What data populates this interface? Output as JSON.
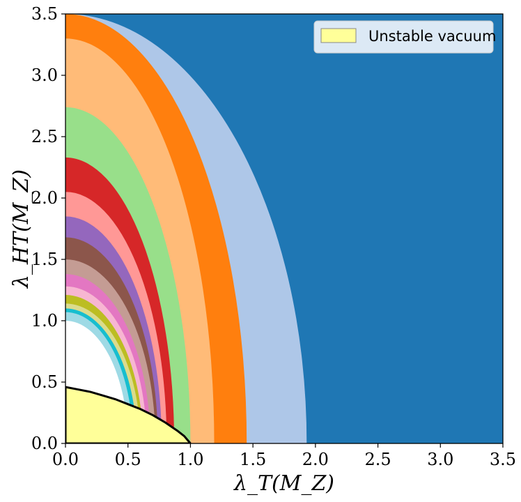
{
  "chart_data": {
    "type": "area",
    "xlabel": "λ_T(M_Z)",
    "ylabel": "λ_HT(M_Z)",
    "xlim": [
      0.0,
      3.5
    ],
    "ylim": [
      0.0,
      3.5
    ],
    "x_ticks": [
      "0.0",
      "0.5",
      "1.0",
      "1.5",
      "2.0",
      "2.5",
      "3.0",
      "3.5"
    ],
    "y_ticks": [
      "0.0",
      "0.5",
      "1.0",
      "1.5",
      "2.0",
      "2.5",
      "3.0",
      "3.5"
    ],
    "grid": false,
    "legend": {
      "position": "top-right",
      "entries": [
        "Unstable vacuum"
      ]
    },
    "bands": [
      {
        "color": "#1f77b4",
        "r_y": 9.9,
        "r_x": 9.9
      },
      {
        "color": "#aec7e8",
        "r_y": 3.5,
        "r_x": 1.93
      },
      {
        "color": "#ff7f0e",
        "r_y": 3.5,
        "r_x": 1.45
      },
      {
        "color": "#ffbb78",
        "r_y": 3.3,
        "r_x": 1.19
      },
      {
        "color": "#98df8a",
        "r_y": 2.74,
        "r_x": 1.0
      },
      {
        "color": "#d62728",
        "r_y": 2.33,
        "r_x": 0.87
      },
      {
        "color": "#ff9896",
        "r_y": 2.05,
        "r_x": 0.81
      },
      {
        "color": "#9467bd",
        "r_y": 1.85,
        "r_x": 0.77
      },
      {
        "color": "#8c564b",
        "r_y": 1.68,
        "r_x": 0.74
      },
      {
        "color": "#c49c94",
        "r_y": 1.5,
        "r_x": 0.72
      },
      {
        "color": "#e377c2",
        "r_y": 1.38,
        "r_x": 0.68
      },
      {
        "color": "#f7b6d2",
        "r_y": 1.28,
        "r_x": 0.65
      },
      {
        "color": "#bcbd22",
        "r_y": 1.21,
        "r_x": 0.62
      },
      {
        "color": "#dbdb8d",
        "r_y": 1.14,
        "r_x": 0.6
      },
      {
        "color": "#17becf",
        "r_y": 1.1,
        "r_x": 0.57
      },
      {
        "color": "#9edae5",
        "r_y": 1.07,
        "r_x": 0.54
      },
      {
        "color": "#ffffff",
        "r_y": 1.0,
        "r_x": 0.5
      }
    ],
    "unstable_vacuum_region": {
      "color": "#ffff99",
      "boundary_lambda_T": [
        0.0,
        0.1,
        0.2,
        0.3,
        0.4,
        0.5,
        0.6,
        0.7,
        0.8,
        0.9,
        0.95,
        1.0
      ],
      "boundary_lambda_HT": [
        0.46,
        0.44,
        0.42,
        0.39,
        0.36,
        0.32,
        0.28,
        0.23,
        0.17,
        0.1,
        0.06,
        0.0
      ]
    }
  }
}
